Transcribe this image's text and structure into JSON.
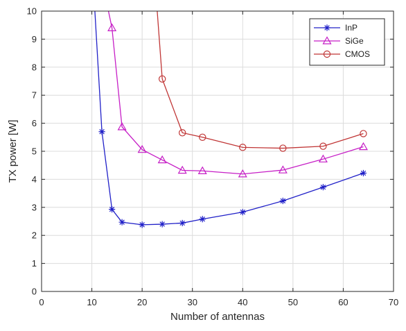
{
  "chart_data": {
    "type": "line",
    "title": "",
    "xlabel": "Number of antennas",
    "ylabel": "TX power [W]",
    "xlim": [
      0,
      70
    ],
    "ylim": [
      0,
      10
    ],
    "xticks": [
      0,
      10,
      20,
      30,
      40,
      50,
      60,
      70
    ],
    "yticks": [
      0,
      1,
      2,
      3,
      4,
      5,
      6,
      7,
      8,
      9,
      10
    ],
    "grid": true,
    "legend_position": "top-right",
    "series": [
      {
        "name": "InP",
        "color": "#2020c8",
        "marker": "asterisk",
        "x": [
          12,
          14,
          16,
          20,
          24,
          28,
          32,
          40,
          48,
          56,
          64
        ],
        "y": [
          5.7,
          2.93,
          2.47,
          2.38,
          2.4,
          2.44,
          2.58,
          2.83,
          3.23,
          3.72,
          4.22
        ],
        "line_x": [
          10.6,
          12,
          14,
          16,
          20,
          24,
          28,
          32,
          40,
          48,
          56,
          64
        ],
        "line_y": [
          10,
          5.7,
          2.93,
          2.47,
          2.38,
          2.4,
          2.44,
          2.58,
          2.83,
          3.23,
          3.72,
          4.22
        ]
      },
      {
        "name": "SiGe",
        "color": "#c61ec6",
        "marker": "triangle",
        "x": [
          14,
          16,
          20,
          24,
          28,
          32,
          40,
          48,
          56,
          64
        ],
        "y": [
          9.4,
          5.87,
          5.06,
          4.69,
          4.32,
          4.3,
          4.19,
          4.33,
          4.72,
          5.16
        ],
        "line_x": [
          13.3,
          14,
          16,
          20,
          24,
          28,
          32,
          40,
          48,
          56,
          64
        ],
        "line_y": [
          10,
          9.4,
          5.87,
          5.06,
          4.69,
          4.32,
          4.3,
          4.19,
          4.33,
          4.72,
          5.16
        ]
      },
      {
        "name": "CMOS",
        "color": "#c03535",
        "marker": "circle",
        "x": [
          24,
          28,
          32,
          40,
          48,
          56,
          64
        ],
        "y": [
          7.58,
          5.66,
          5.5,
          5.14,
          5.11,
          5.18,
          5.63
        ],
        "line_x": [
          23,
          24,
          28,
          32,
          40,
          48,
          56,
          64
        ],
        "line_y": [
          10,
          7.58,
          5.66,
          5.5,
          5.14,
          5.11,
          5.18,
          5.63
        ]
      }
    ]
  }
}
